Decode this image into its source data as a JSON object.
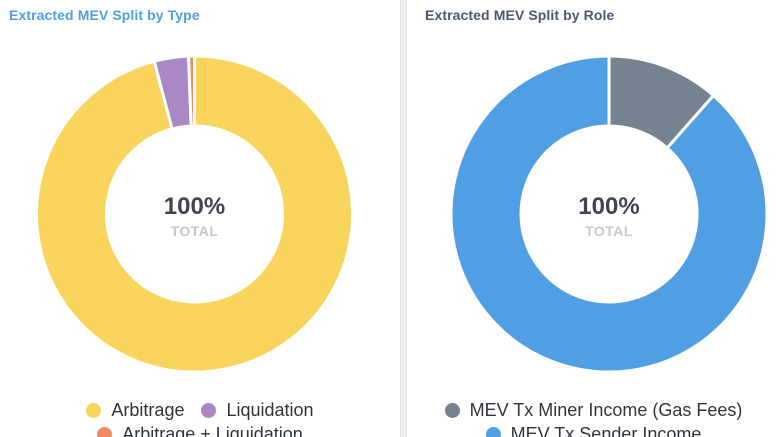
{
  "chart_data": [
    {
      "type": "pie",
      "title": "Extracted MEV Split by Type",
      "center_value": "100%",
      "center_label": "TOTAL",
      "legend_position": "bottom",
      "slices": [
        {
          "name": "Arbitrage",
          "value": 95.9,
          "color": "#f9d45c"
        },
        {
          "name": "Liquidation",
          "value": 3.5,
          "color": "#a989c5"
        },
        {
          "name": "Arbitrage + Liquidation",
          "value": 0.6,
          "color": "#ef8c64"
        }
      ]
    },
    {
      "type": "pie",
      "title": "Extracted MEV Split by Role",
      "center_value": "100%",
      "center_label": "TOTAL",
      "legend_position": "bottom",
      "slices": [
        {
          "name": "MEV Tx Miner Income (Gas Fees)",
          "value": 11.5,
          "color": "#74838f"
        },
        {
          "name": "MEV Tx Sender Income",
          "value": 88.5,
          "color": "#509ee3"
        }
      ]
    }
  ]
}
